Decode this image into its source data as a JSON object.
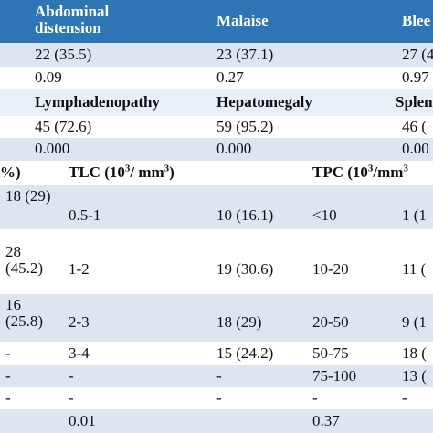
{
  "top_header": {
    "col1": "Abdominal distension",
    "col2": "Malaise",
    "col3": "Blee"
  },
  "top_rows": [
    {
      "col1": "22 (35.5)",
      "col2": "23 (37.1)",
      "col3": "27 (4"
    },
    {
      "col1": "0.09",
      "col2": "0.27",
      "col3": "0.97"
    }
  ],
  "mid_header": {
    "col1": "Lymphadenopathy",
    "col2": "Hepatomegaly",
    "col3": "Splen"
  },
  "mid_rows": [
    {
      "col1": "45 (72.6)",
      "col2": "59 (95.2)",
      "col3": "46 ("
    },
    {
      "col1": "0.000",
      "col2": "0.000",
      "col3": "0.00"
    }
  ],
  "count_header": {
    "col0": "%)",
    "tlc_label": "TLC (10",
    "tlc_exp": "3",
    "tlc_unit": "/ mm",
    "tlc_exp2": "3",
    "tlc_close": ")",
    "tpc_label": "TPC (10",
    "tpc_exp": "3",
    "tpc_unit": "/mm",
    "tpc_exp2": "3"
  },
  "count_rows": [
    {
      "col0": "18 (29)",
      "tlc": "0.5-1",
      "n1": "10 (16.1)",
      "tpc": "<10",
      "n2": "1 (1"
    },
    {
      "col0": "28 (45.2)",
      "tlc": "1-2",
      "n1": "19 (30.6)",
      "tpc": "10-20",
      "n2": "11 ("
    },
    {
      "col0": "16 (25.8)",
      "tlc": "2-3",
      "n1": "18 (29)",
      "tpc": "20-50",
      "n2": "9 (1"
    },
    {
      "col0": "-",
      "tlc": "3-4",
      "n1": "15 (24.2)",
      "tpc": "50-75",
      "n2": "18 ("
    },
    {
      "col0": "-",
      "tlc": "-",
      "n1": "-",
      "tpc": "75-100",
      "n2": "13 ("
    },
    {
      "col0": "-",
      "tlc": "-",
      "n1": "-",
      "tpc": "-",
      "n2": "-"
    },
    {
      "col0": "",
      "tlc": "0.01",
      "n1": "",
      "tpc": "0.37",
      "n2": ""
    }
  ],
  "colors": {
    "header_blue": "#2e75b6",
    "band_light": "#dde6f0",
    "band_sub": "#e9eff6"
  }
}
